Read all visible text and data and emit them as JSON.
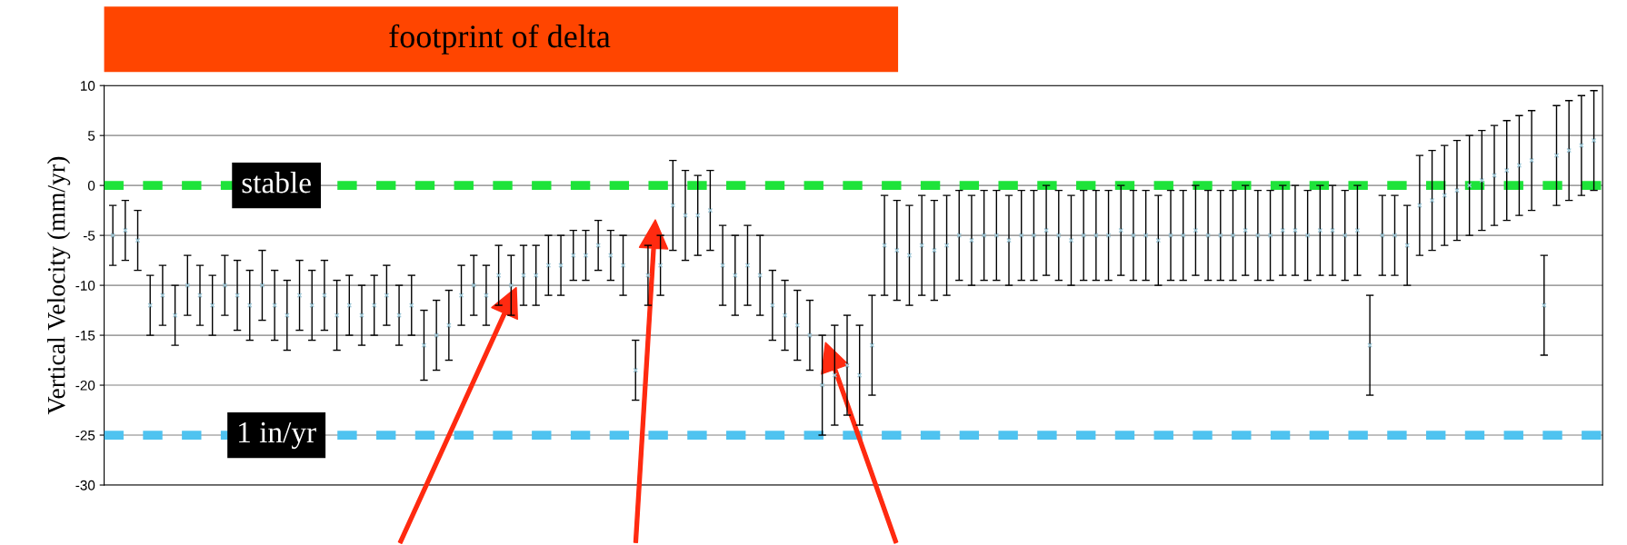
{
  "chart_data": {
    "type": "scatter",
    "title": "footprint of delta",
    "ylabel": "Vertical Velocity (mm/yr)",
    "categories": [
      null,
      null,
      null,
      null,
      null,
      null,
      null,
      null,
      null,
      null,
      null,
      null,
      null,
      null,
      null,
      null,
      null,
      null,
      null,
      null,
      null,
      null,
      null,
      null,
      null,
      null,
      null,
      null,
      null,
      null,
      null,
      null,
      null,
      null,
      null,
      null,
      null,
      null,
      null,
      null,
      null,
      null,
      null,
      null,
      null,
      null,
      null,
      null,
      null,
      null,
      null,
      null,
      null,
      null,
      null,
      null,
      null,
      null,
      null,
      null,
      null,
      null,
      null,
      null,
      null,
      null,
      null,
      null,
      null,
      null,
      null,
      null,
      null,
      null,
      null,
      null,
      null,
      null,
      null,
      null,
      null,
      null,
      null,
      null,
      null,
      null,
      null,
      null,
      null,
      null,
      null,
      null,
      null,
      null,
      null,
      null,
      null,
      null,
      null,
      null,
      null,
      null,
      null,
      null,
      null,
      null,
      null,
      null,
      null,
      null,
      null,
      null,
      null,
      null,
      null,
      null,
      null,
      null,
      null,
      null
    ],
    "series": [
      {
        "color": "#9ec8d8",
        "values": [
          -5,
          -4.5,
          -5.5,
          -12,
          -11,
          -13,
          -10,
          -11,
          -12,
          -10,
          -11,
          -12,
          -10,
          -12,
          -13,
          -11,
          -12,
          -11,
          -13,
          -12,
          -13,
          -12,
          -11,
          -13,
          -12,
          -16,
          -15,
          -14,
          -11,
          -10,
          -11,
          -9,
          -10,
          -9,
          -9,
          -8,
          -8,
          -7,
          -7,
          -6,
          -7,
          -8,
          -18.5,
          -9,
          -8,
          -2,
          -3,
          -3,
          -2.5,
          -8,
          -9,
          -8,
          -9,
          -12,
          -13,
          -14,
          -15,
          -20,
          -19,
          -18,
          -19,
          -16,
          -6,
          -6.5,
          -7,
          -6,
          -6.5,
          -6,
          -5,
          -5.5,
          -5,
          -5,
          -5.5,
          -5,
          -5,
          -4.5,
          -5,
          -5.5,
          -5,
          -5,
          -5,
          -4.5,
          -5,
          -5,
          -5.5,
          -5,
          -5,
          -4.5,
          -5,
          -5,
          -5,
          -4.5,
          -5,
          -5,
          -4.5,
          -4.5,
          -5,
          -4.5,
          -4.5,
          -5,
          -4.5,
          -16,
          -5,
          -5,
          -6,
          -2,
          -1.5,
          -1,
          -0.5,
          0,
          0.5,
          1,
          1.5,
          2,
          2.5,
          -12,
          3,
          3.5,
          4,
          4.5
        ],
        "errors": [
          3,
          3,
          3,
          3,
          3,
          3,
          3,
          3,
          3,
          3,
          3.5,
          3.5,
          3.5,
          3.5,
          3.5,
          3.5,
          3.5,
          3.5,
          3.5,
          3,
          3,
          3,
          3,
          3,
          3,
          3.5,
          3.5,
          3.5,
          3,
          3,
          3,
          3,
          3,
          3,
          3,
          3,
          3,
          2.5,
          2.5,
          2.5,
          2.5,
          3,
          3,
          3,
          3,
          4.5,
          4.5,
          4,
          4,
          4,
          4,
          4,
          4,
          3.5,
          3.5,
          3.5,
          3.5,
          5,
          5,
          5,
          5,
          5,
          5,
          5,
          5,
          5,
          5,
          5,
          4.5,
          4.5,
          4.5,
          4.5,
          4.5,
          4.5,
          4.5,
          4.5,
          4.5,
          4.5,
          4.5,
          4.5,
          4.5,
          4.5,
          4.5,
          4.5,
          4.5,
          4.5,
          4.5,
          4.5,
          4.5,
          4.5,
          4.5,
          4.5,
          4.5,
          4.5,
          4.5,
          4.5,
          4.5,
          4.5,
          4.5,
          4.5,
          4.5,
          5,
          4,
          4,
          4,
          5,
          5,
          5,
          5,
          5,
          5,
          5,
          5,
          5,
          5,
          5,
          5,
          5,
          5,
          5
        ]
      }
    ],
    "ylim": [
      -30,
      10
    ],
    "yticks": [
      -30,
      -25,
      -20,
      -15,
      -10,
      -5,
      0,
      5,
      10
    ],
    "grid": "y",
    "marker": "cross",
    "legend": false,
    "tick_labels": "y",
    "ref_lines": [
      {
        "axis": "y",
        "value": 0,
        "label": "stable",
        "color": "#1ee33a",
        "line_style": "dashed"
      },
      {
        "axis": "y",
        "value": -25,
        "label": "1 in/yr",
        "color": "#4fc3f0",
        "line_style": "dashed"
      }
    ]
  }
}
